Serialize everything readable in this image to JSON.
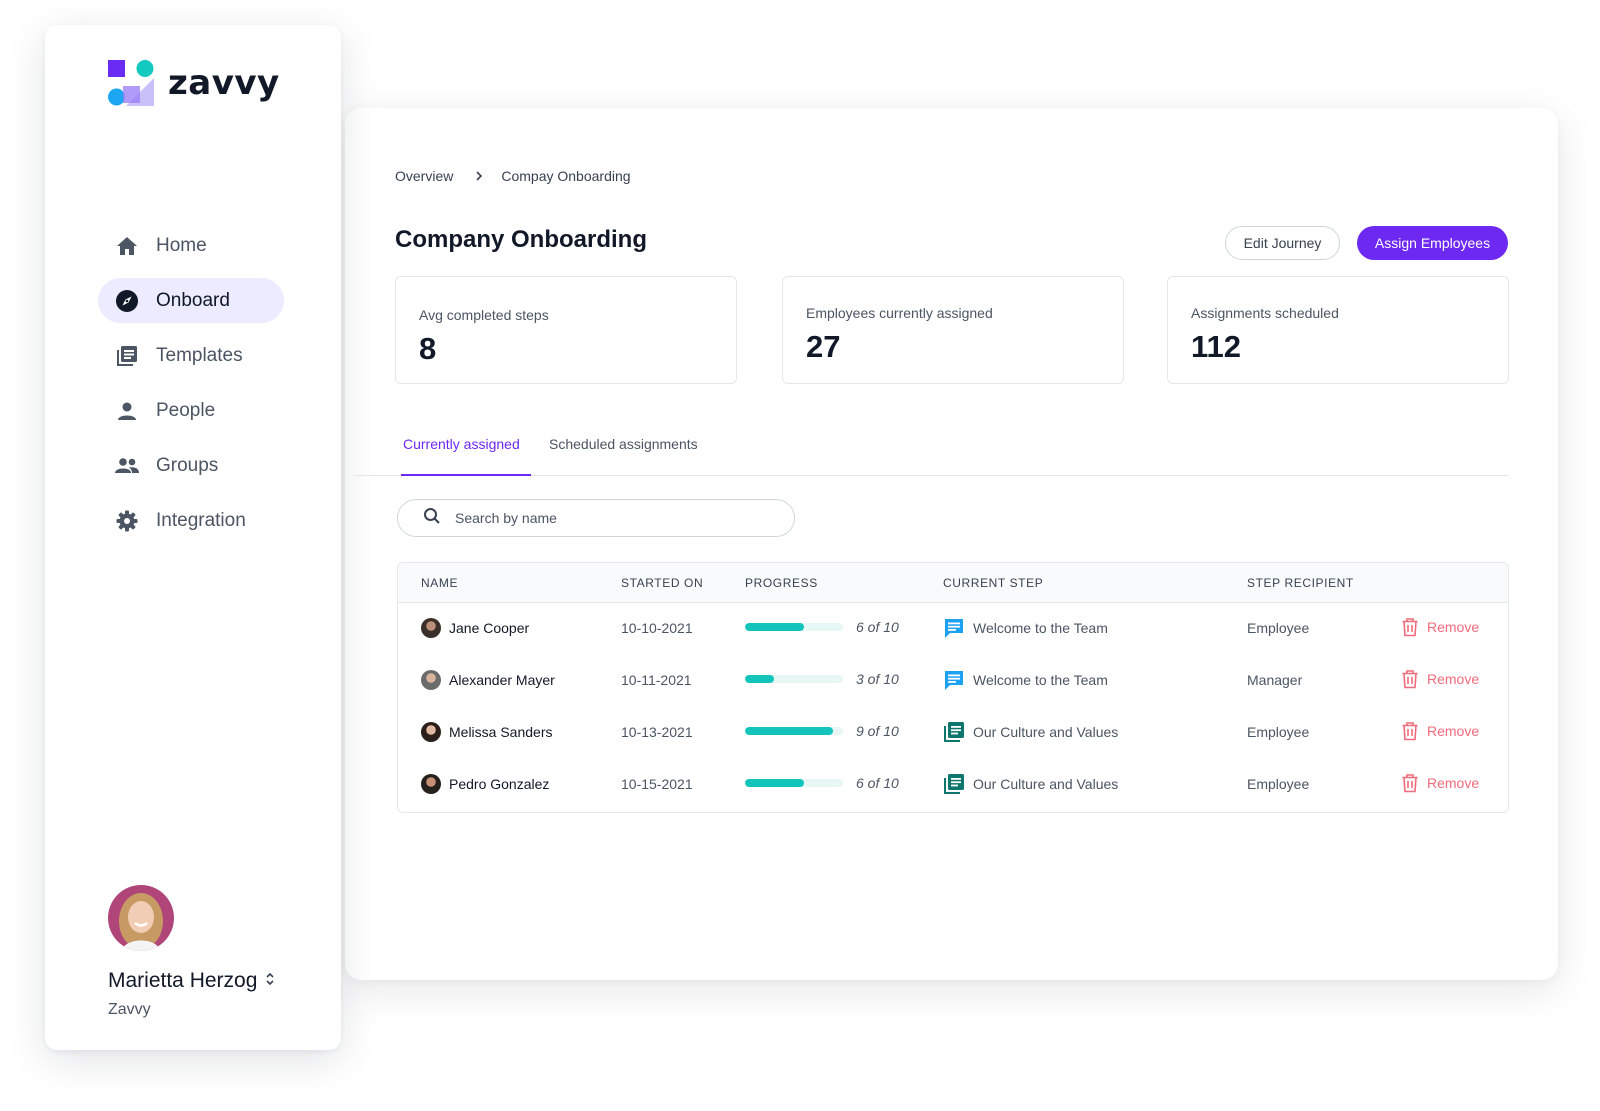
{
  "app": {
    "logo_text": "zavvy"
  },
  "sidebar": {
    "items": [
      {
        "label": "Home",
        "icon": "home-icon"
      },
      {
        "label": "Onboard",
        "icon": "compass-icon",
        "active": true
      },
      {
        "label": "Templates",
        "icon": "templates-icon"
      },
      {
        "label": "People",
        "icon": "person-icon"
      },
      {
        "label": "Groups",
        "icon": "group-icon"
      },
      {
        "label": "Integration",
        "icon": "gear-icon"
      }
    ],
    "profile": {
      "name": "Marietta Herzog",
      "org": "Zavvy"
    }
  },
  "breadcrumb": {
    "root": "Overview",
    "current": "Compay Onboarding"
  },
  "page": {
    "title": "Company Onboarding",
    "edit_label": "Edit Journey",
    "assign_label": "Assign Employees"
  },
  "stats": [
    {
      "label": "Avg completed steps",
      "value": "8"
    },
    {
      "label": "Employees currently assigned",
      "value": "27"
    },
    {
      "label": "Assignments scheduled",
      "value": "112"
    }
  ],
  "tabs": [
    {
      "label": "Currently assigned",
      "active": true
    },
    {
      "label": "Scheduled assignments"
    }
  ],
  "search": {
    "placeholder": "Search by name"
  },
  "table": {
    "headers": [
      "NAME",
      "STARTED ON",
      "PROGRESS",
      "CURRENT STEP",
      "STEP RECIPIENT"
    ],
    "remove_label": "Remove",
    "rows": [
      {
        "name": "Jane Cooper",
        "started": "10-10-2021",
        "progress": 0.6,
        "progress_text": "6 of 10",
        "step": "Welcome to the Team",
        "step_icon": "chat-icon",
        "recipient": "Employee"
      },
      {
        "name": "Alexander Mayer",
        "started": "10-11-2021",
        "progress": 0.3,
        "progress_text": "3 of 10",
        "step": "Welcome to the Team",
        "step_icon": "chat-icon",
        "recipient": "Manager"
      },
      {
        "name": "Melissa Sanders",
        "started": "10-13-2021",
        "progress": 0.9,
        "progress_text": "9 of 10",
        "step": "Our Culture and Values",
        "step_icon": "document-icon",
        "recipient": "Employee"
      },
      {
        "name": "Pedro Gonzalez",
        "started": "10-15-2021",
        "progress": 0.6,
        "progress_text": "6 of 10",
        "step": "Our Culture and Values",
        "step_icon": "document-icon",
        "recipient": "Employee"
      }
    ]
  },
  "colors": {
    "accent": "#6d28f2",
    "progress": "#13c4bd",
    "danger": "#f26b7a"
  }
}
